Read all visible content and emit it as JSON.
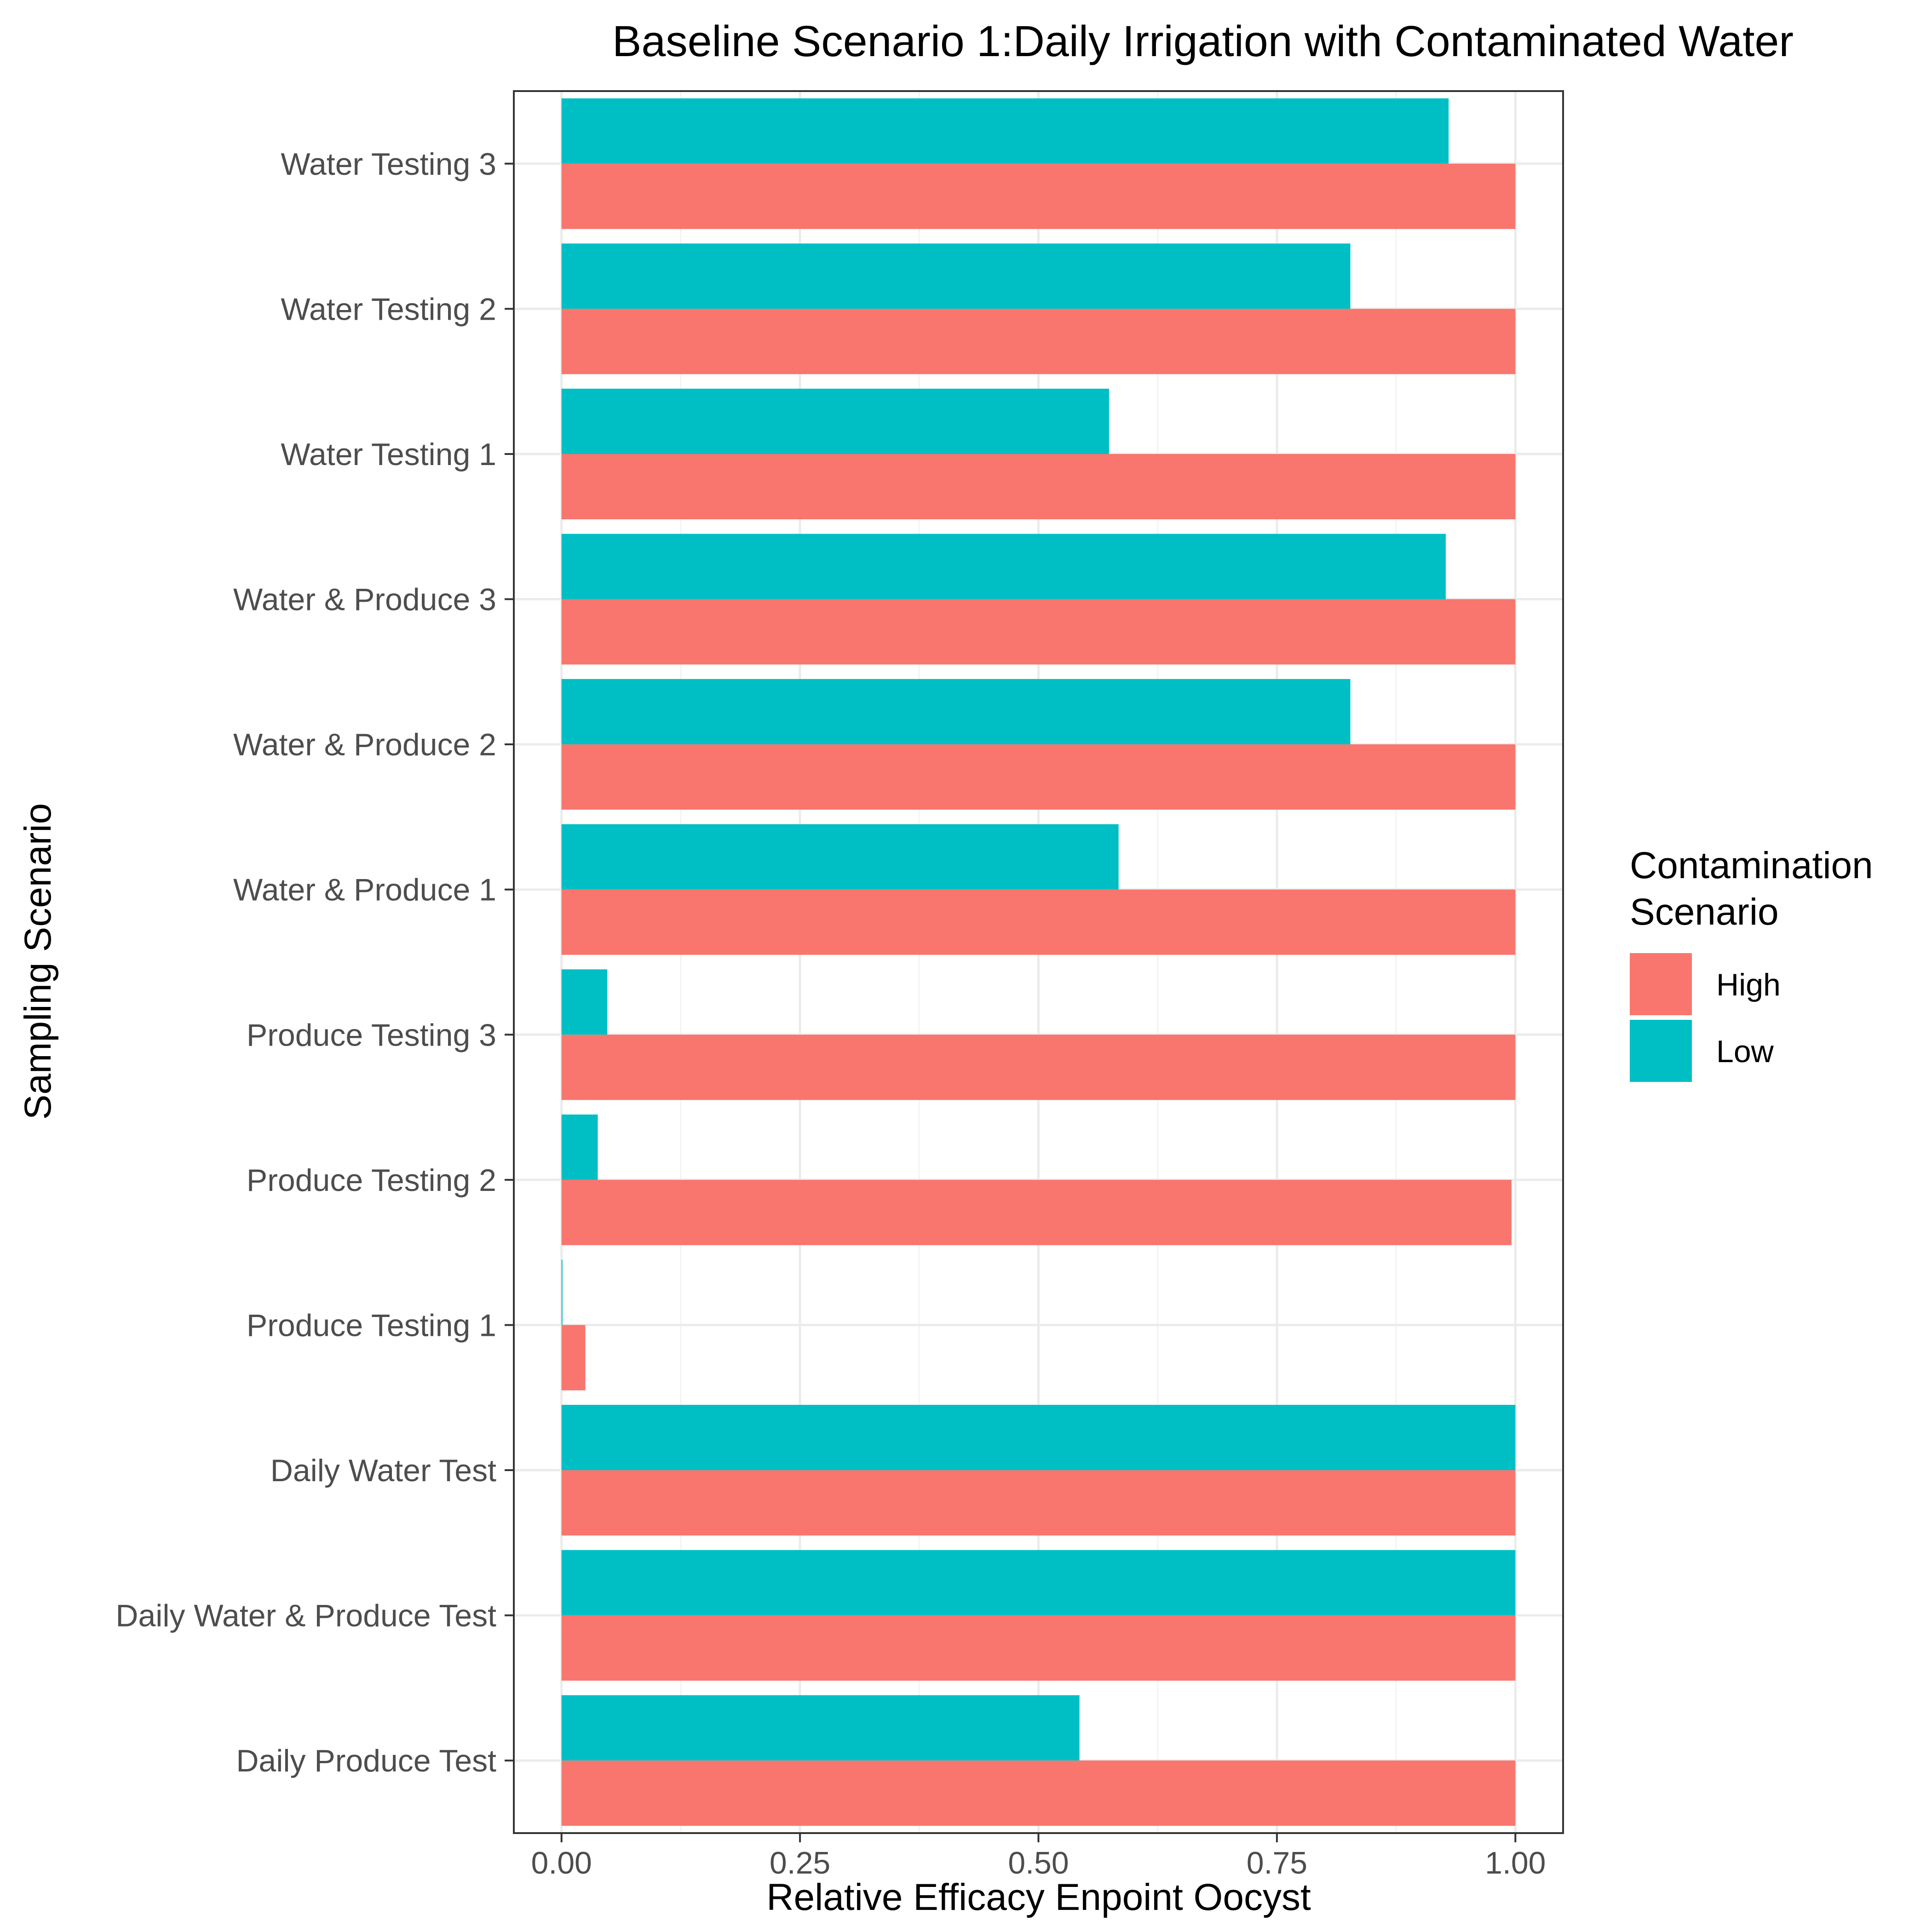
{
  "chart_data": {
    "type": "bar",
    "orientation": "horizontal",
    "title": "Baseline Scenario 1:Daily Irrigation with Contaminated Water",
    "xlabel": "Relative Efficacy Enpoint Oocyst",
    "ylabel": "Sampling Scenario",
    "xlim": [
      -0.05,
      1.05
    ],
    "x_ticks": [
      0.0,
      0.25,
      0.5,
      0.75,
      1.0
    ],
    "x_tick_labels": [
      "0.00",
      "0.25",
      "0.50",
      "0.75",
      "1.00"
    ],
    "grid": true,
    "categories": [
      "Daily Produce Test",
      "Daily Water & Produce Test",
      "Daily Water Test",
      "Produce Testing 1",
      "Produce Testing 2",
      "Produce Testing 3",
      "Water & Produce 1",
      "Water & Produce 2",
      "Water & Produce 3",
      "Water Testing 1",
      "Water Testing 2",
      "Water Testing 3"
    ],
    "series": [
      {
        "name": "High",
        "color": "#F8766D",
        "values": [
          1.0,
          1.0,
          1.0,
          0.025,
          0.996,
          1.0,
          1.0,
          1.0,
          1.0,
          1.0,
          1.0,
          1.0
        ]
      },
      {
        "name": "Low",
        "color": "#00BFC4",
        "values": [
          0.543,
          1.0,
          1.0,
          0.001,
          0.038,
          0.048,
          0.584,
          0.827,
          0.927,
          0.574,
          0.827,
          0.93
        ]
      }
    ],
    "legend": {
      "title": "Contamination\nScenario",
      "title_lines": [
        "Contamination",
        "Scenario"
      ],
      "position": "right"
    }
  }
}
